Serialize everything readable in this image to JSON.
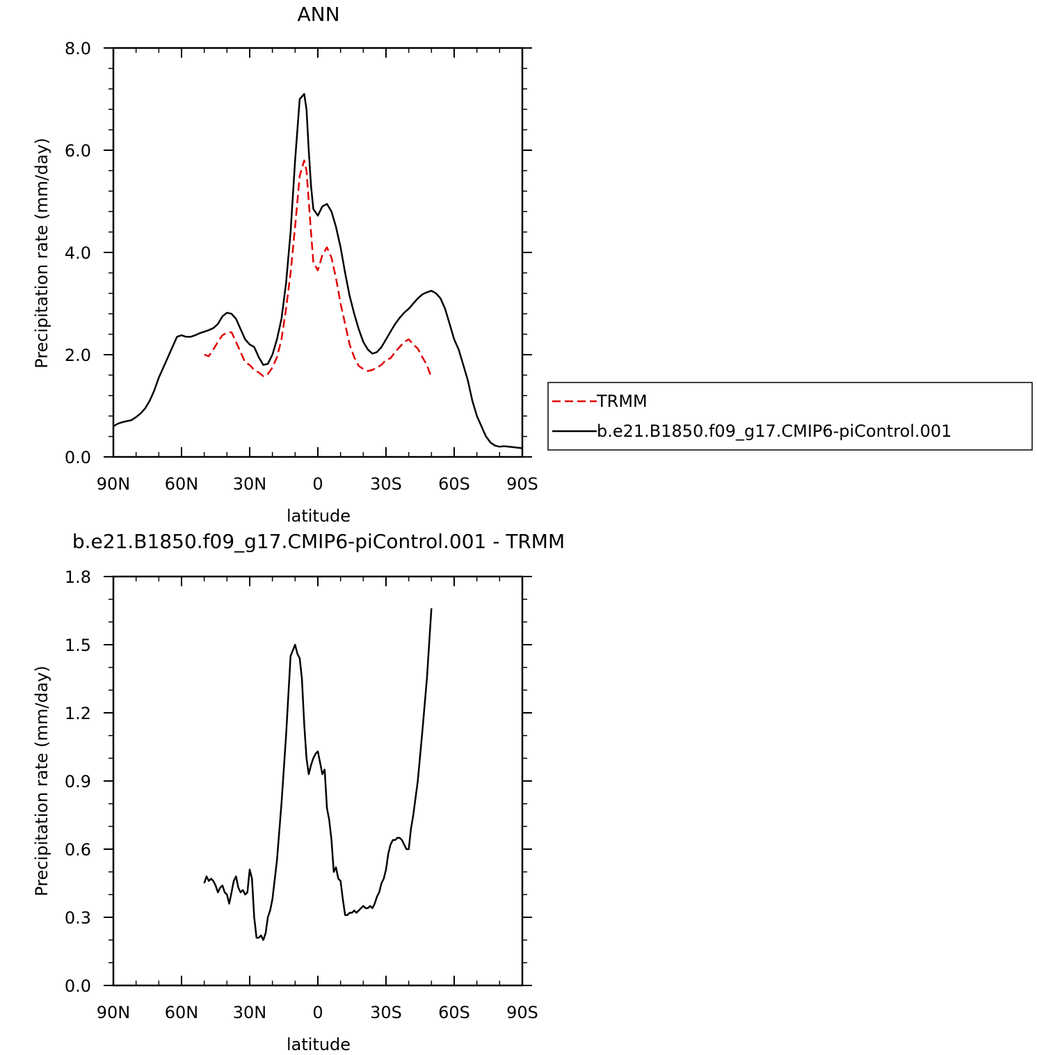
{
  "chart_data": [
    {
      "type": "line",
      "title": "ANN",
      "xlabel": "latitude",
      "ylabel": "Precipitation rate (mm/day)",
      "xlim": [
        90,
        -90
      ],
      "ylim": [
        0,
        8
      ],
      "x_ticks": [
        {
          "value": 90,
          "label": "90N"
        },
        {
          "value": 60,
          "label": "60N"
        },
        {
          "value": 30,
          "label": "30N"
        },
        {
          "value": 0,
          "label": "0"
        },
        {
          "value": -30,
          "label": "30S"
        },
        {
          "value": -60,
          "label": "60S"
        },
        {
          "value": -90,
          "label": "90S"
        }
      ],
      "y_ticks": [
        {
          "value": 0,
          "label": "0.0"
        },
        {
          "value": 2,
          "label": "2.0"
        },
        {
          "value": 4,
          "label": "4.0"
        },
        {
          "value": 6,
          "label": "6.0"
        },
        {
          "value": 8,
          "label": "8.0"
        }
      ],
      "grid": false,
      "legend": {
        "placement": "right, outside plot"
      },
      "series": [
        {
          "name": "TRMM",
          "color": "#e00000",
          "dash": "dashed",
          "x": [
            50,
            48,
            46,
            44,
            42,
            40,
            38,
            36,
            34,
            32,
            30,
            28,
            26,
            24,
            22,
            20,
            18,
            16,
            14,
            12,
            10,
            8,
            6,
            5,
            4,
            3,
            2,
            0,
            -2,
            -4,
            -6,
            -8,
            -10,
            -12,
            -14,
            -16,
            -18,
            -20,
            -22,
            -24,
            -26,
            -28,
            -30,
            -32,
            -34,
            -36,
            -38,
            -40,
            -42,
            -44,
            -46,
            -48,
            -50
          ],
          "y": [
            2.0,
            1.97,
            2.1,
            2.25,
            2.38,
            2.43,
            2.44,
            2.25,
            2.05,
            1.85,
            1.8,
            1.7,
            1.65,
            1.58,
            1.62,
            1.75,
            1.95,
            2.3,
            2.9,
            3.6,
            4.5,
            5.5,
            5.8,
            5.6,
            5.0,
            4.4,
            3.8,
            3.65,
            3.95,
            4.1,
            3.9,
            3.5,
            3.0,
            2.6,
            2.2,
            1.95,
            1.78,
            1.72,
            1.68,
            1.7,
            1.75,
            1.8,
            1.9,
            1.93,
            2.05,
            2.15,
            2.25,
            2.3,
            2.2,
            2.12,
            1.95,
            1.8,
            1.55
          ]
        },
        {
          "name": "b.e21.B1850.f09_g17.CMIP6-piControl.001",
          "color": "#000000",
          "dash": "solid",
          "x": [
            90,
            88,
            86,
            84,
            82,
            80,
            78,
            76,
            74,
            72,
            70,
            68,
            66,
            64,
            62,
            60,
            58,
            56,
            54,
            52,
            50,
            48,
            46,
            44,
            42,
            40,
            38,
            36,
            34,
            32,
            30,
            28,
            26,
            24,
            22,
            20,
            18,
            16,
            14,
            12,
            10,
            8,
            6,
            5,
            4,
            3,
            2,
            0,
            -2,
            -4,
            -6,
            -8,
            -10,
            -12,
            -14,
            -16,
            -18,
            -20,
            -22,
            -24,
            -26,
            -28,
            -30,
            -32,
            -34,
            -36,
            -38,
            -40,
            -42,
            -44,
            -46,
            -48,
            -50,
            -52,
            -54,
            -56,
            -58,
            -60,
            -62,
            -64,
            -66,
            -68,
            -70,
            -72,
            -74,
            -76,
            -78,
            -80,
            -82,
            -84,
            -86,
            -88,
            -90
          ],
          "y": [
            0.6,
            0.65,
            0.68,
            0.7,
            0.72,
            0.78,
            0.85,
            0.95,
            1.1,
            1.3,
            1.55,
            1.75,
            1.95,
            2.15,
            2.35,
            2.38,
            2.35,
            2.35,
            2.38,
            2.42,
            2.45,
            2.48,
            2.52,
            2.6,
            2.75,
            2.82,
            2.8,
            2.7,
            2.5,
            2.3,
            2.2,
            2.15,
            1.95,
            1.8,
            1.82,
            2.0,
            2.3,
            2.7,
            3.4,
            4.4,
            5.8,
            7.0,
            7.1,
            6.8,
            6.0,
            5.3,
            4.85,
            4.72,
            4.9,
            4.95,
            4.8,
            4.5,
            4.1,
            3.6,
            3.15,
            2.8,
            2.5,
            2.25,
            2.1,
            2.02,
            2.05,
            2.15,
            2.3,
            2.45,
            2.6,
            2.72,
            2.82,
            2.9,
            3.0,
            3.1,
            3.18,
            3.22,
            3.25,
            3.2,
            3.1,
            2.9,
            2.6,
            2.3,
            2.1,
            1.8,
            1.5,
            1.1,
            0.8,
            0.6,
            0.4,
            0.28,
            0.22,
            0.2,
            0.21,
            0.2,
            0.19,
            0.18,
            0.17
          ]
        }
      ]
    },
    {
      "type": "line",
      "title": "b.e21.B1850.f09_g17.CMIP6-piControl.001 - TRMM",
      "xlabel": "latitude",
      "ylabel": "Precipitation rate (mm/day)",
      "xlim": [
        90,
        -90
      ],
      "ylim": [
        0,
        1.8
      ],
      "x_ticks": [
        {
          "value": 90,
          "label": "90N"
        },
        {
          "value": 60,
          "label": "60N"
        },
        {
          "value": 30,
          "label": "30N"
        },
        {
          "value": 0,
          "label": "0"
        },
        {
          "value": -30,
          "label": "30S"
        },
        {
          "value": -60,
          "label": "60S"
        },
        {
          "value": -90,
          "label": "90S"
        }
      ],
      "y_ticks": [
        {
          "value": 0,
          "label": "0.0"
        },
        {
          "value": 0.3,
          "label": "0.3"
        },
        {
          "value": 0.6,
          "label": "0.6"
        },
        {
          "value": 0.9,
          "label": "0.9"
        },
        {
          "value": 1.2,
          "label": "1.2"
        },
        {
          "value": 1.5,
          "label": "1.5"
        },
        {
          "value": 1.8,
          "label": "1.8"
        }
      ],
      "grid": false,
      "series": [
        {
          "color": "#000000",
          "dash": "solid",
          "x": [
            50,
            49,
            48,
            47,
            46,
            45,
            44,
            43,
            42,
            41,
            40,
            39,
            38,
            37,
            36,
            35,
            34,
            33,
            32,
            31,
            30,
            29,
            28,
            27,
            26,
            25,
            24,
            23,
            22,
            21,
            20,
            18,
            16,
            14,
            12,
            10,
            9,
            8,
            7,
            6,
            5,
            4,
            3,
            2,
            1,
            0,
            -1,
            -2,
            -3,
            -4,
            -5,
            -6,
            -7,
            -8,
            -9,
            -10,
            -11,
            -12,
            -13,
            -14,
            -15,
            -16,
            -17,
            -18,
            -19,
            -20,
            -21,
            -22,
            -23,
            -24,
            -25,
            -26,
            -27,
            -28,
            -29,
            -30,
            -31,
            -32,
            -33,
            -34,
            -35,
            -36,
            -37,
            -38,
            -39,
            -40,
            -41,
            -42,
            -44,
            -46,
            -48,
            -50
          ],
          "y": [
            0.45,
            0.48,
            0.46,
            0.47,
            0.46,
            0.44,
            0.41,
            0.43,
            0.44,
            0.41,
            0.4,
            0.36,
            0.41,
            0.46,
            0.48,
            0.43,
            0.41,
            0.42,
            0.4,
            0.41,
            0.51,
            0.47,
            0.3,
            0.21,
            0.21,
            0.22,
            0.2,
            0.23,
            0.3,
            0.33,
            0.38,
            0.55,
            0.8,
            1.1,
            1.45,
            1.5,
            1.46,
            1.44,
            1.35,
            1.15,
            1.0,
            0.93,
            0.97,
            1.0,
            1.02,
            1.03,
            0.98,
            0.93,
            0.95,
            0.78,
            0.73,
            0.64,
            0.5,
            0.52,
            0.47,
            0.46,
            0.38,
            0.31,
            0.31,
            0.32,
            0.32,
            0.33,
            0.32,
            0.33,
            0.34,
            0.35,
            0.34,
            0.34,
            0.35,
            0.34,
            0.36,
            0.39,
            0.41,
            0.45,
            0.47,
            0.51,
            0.58,
            0.62,
            0.64,
            0.64,
            0.65,
            0.65,
            0.64,
            0.62,
            0.6,
            0.6,
            0.69,
            0.75,
            0.9,
            1.12,
            1.35,
            1.66
          ]
        }
      ]
    }
  ]
}
